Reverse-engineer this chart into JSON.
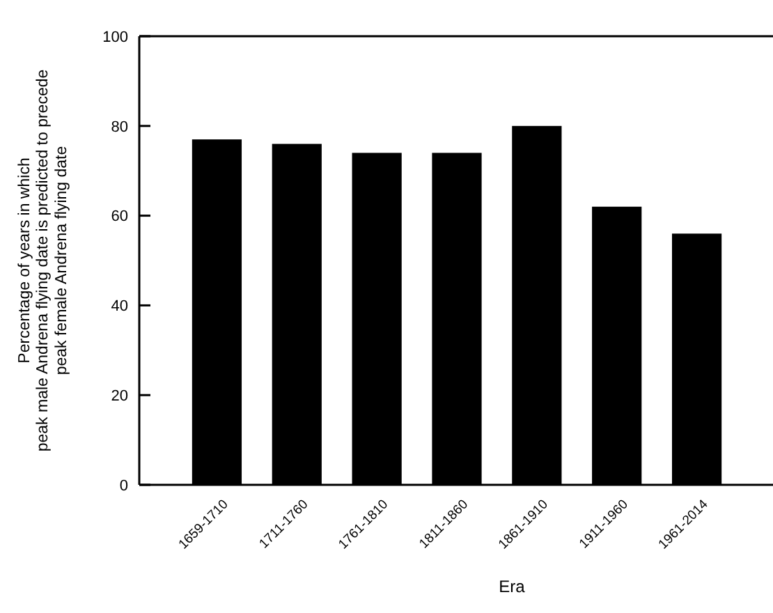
{
  "chart_data": {
    "type": "bar",
    "xlabel": "Era",
    "ylabel": "Percentage of years in which\npeak male Andrena flying date is predicted to precede\npeak female Andrena flying date",
    "categories": [
      "1659-1710",
      "1711-1760",
      "1761-1810",
      "1811-1860",
      "1861-1910",
      "1911-1960",
      "1961-2014"
    ],
    "values": [
      77,
      76,
      74,
      74,
      80,
      62,
      56
    ],
    "color": "#000000",
    "ylim": [
      0,
      100
    ],
    "yticks": [
      0,
      20,
      40,
      60,
      80,
      100
    ],
    "grid": false
  }
}
